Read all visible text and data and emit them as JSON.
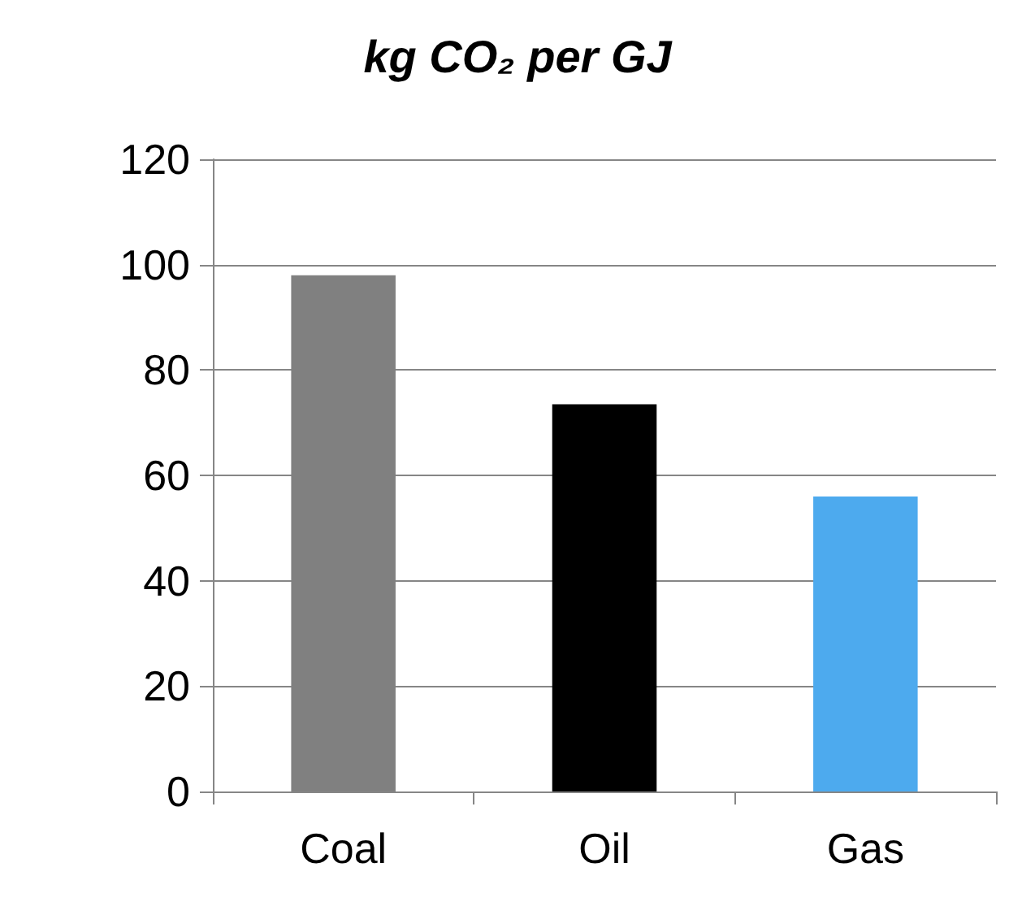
{
  "chart_data": {
    "type": "bar",
    "title": "kg CO₂ per GJ",
    "categories": [
      "Coal",
      "Oil",
      "Gas"
    ],
    "values": [
      98,
      73.5,
      56
    ],
    "colors": [
      "#808080",
      "#000000",
      "#4daaee"
    ],
    "ylim": [
      0,
      120
    ],
    "yticks": [
      0,
      20,
      40,
      60,
      80,
      100,
      120
    ],
    "grid": "y"
  }
}
